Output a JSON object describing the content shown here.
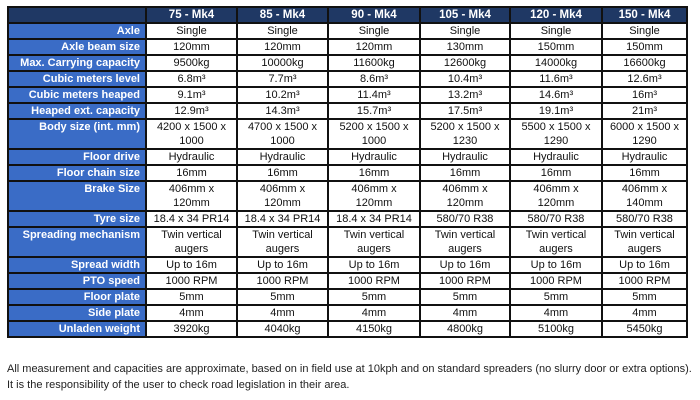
{
  "table": {
    "columns": [
      "75 - Mk4",
      "85 - Mk4",
      "90 - Mk4",
      "105 - Mk4",
      "120 - Mk4",
      "150 - Mk4"
    ],
    "rows": [
      {
        "label": "Axle",
        "values": [
          "Single",
          "Single",
          "Single",
          "Single",
          "Single",
          "Single"
        ]
      },
      {
        "label": "Axle beam size",
        "values": [
          "120mm",
          "120mm",
          "120mm",
          "130mm",
          "150mm",
          "150mm"
        ]
      },
      {
        "label": "Max. Carrying capacity",
        "values": [
          "9500kg",
          "10000kg",
          "11600kg",
          "12600kg",
          "14000kg",
          "16600kg"
        ]
      },
      {
        "label": "Cubic meters level",
        "values": [
          "6.8m³",
          "7.7m³",
          "8.6m³",
          "10.4m³",
          "11.6m³",
          "12.6m³"
        ]
      },
      {
        "label": "Cubic meters heaped",
        "values": [
          "9.1m³",
          "10.2m³",
          "11.4m³",
          "13.2m³",
          "14.6m³",
          "16m³"
        ]
      },
      {
        "label": "Heaped ext. capacity",
        "values": [
          "12.9m³",
          "14.3m³",
          "15.7m³",
          "17.5m³",
          "19.1m³",
          "21m³"
        ]
      },
      {
        "label": "Body size (int. mm)",
        "values": [
          "4200 x 1500 x 1000",
          "4700 x 1500 x 1000",
          "5200 x 1500 x 1000",
          "5200 x 1500 x 1230",
          "5500 x 1500 x 1290",
          "6000 x 1500 x 1290"
        ]
      },
      {
        "label": "Floor drive",
        "values": [
          "Hydraulic",
          "Hydraulic",
          "Hydraulic",
          "Hydraulic",
          "Hydraulic",
          "Hydraulic"
        ]
      },
      {
        "label": "Floor chain size",
        "values": [
          "16mm",
          "16mm",
          "16mm",
          "16mm",
          "16mm",
          "16mm"
        ]
      },
      {
        "label": "Brake Size",
        "values": [
          "406mm x 120mm",
          "406mm x 120mm",
          "406mm x 120mm",
          "406mm x 120mm",
          "406mm x 120mm",
          "406mm x 140mm"
        ]
      },
      {
        "label": "Tyre size",
        "values": [
          "18.4 x 34 PR14",
          "18.4 x 34 PR14",
          "18.4 x 34 PR14",
          "580/70 R38",
          "580/70 R38",
          "580/70 R38"
        ]
      },
      {
        "label": "Spreading mechanism",
        "values": [
          "Twin vertical augers",
          "Twin vertical augers",
          "Twin vertical augers",
          "Twin vertical augers",
          "Twin vertical augers",
          "Twin vertical augers"
        ]
      },
      {
        "label": "Spread width",
        "values": [
          "Up to 16m",
          "Up to 16m",
          "Up to 16m",
          "Up to 16m",
          "Up to 16m",
          "Up to 16m"
        ]
      },
      {
        "label": "PTO speed",
        "values": [
          "1000 RPM",
          "1000 RPM",
          "1000 RPM",
          "1000 RPM",
          "1000 RPM",
          "1000 RPM"
        ]
      },
      {
        "label": "Floor plate",
        "values": [
          "5mm",
          "5mm",
          "5mm",
          "5mm",
          "5mm",
          "5mm"
        ]
      },
      {
        "label": "Side plate",
        "values": [
          "4mm",
          "4mm",
          "4mm",
          "4mm",
          "4mm",
          "4mm"
        ]
      },
      {
        "label": "Unladen weight",
        "values": [
          "3920kg",
          "4040kg",
          "4150kg",
          "4800kg",
          "5100kg",
          "5450kg"
        ]
      }
    ]
  },
  "footnote": {
    "line1": "All measurement and capacities are approximate, based on in field use at 10kph and on standard spreaders (no slurry door or extra options).",
    "line2": "It is the responsibility of the user to check road legislation in their area."
  },
  "colors": {
    "header": "#1f3864",
    "label_column": "#3a6cc6"
  }
}
